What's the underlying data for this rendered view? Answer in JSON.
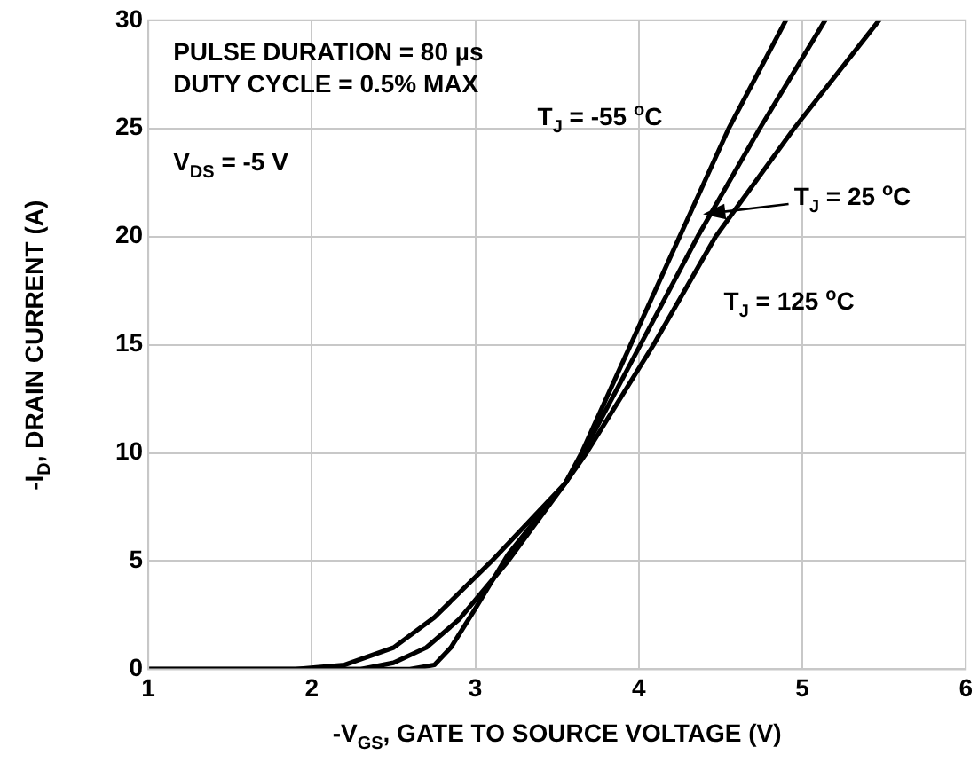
{
  "chart_data": {
    "type": "line",
    "xlabel": "-V$_{GS}$, GATE TO SOURCE VOLTAGE (V)",
    "ylabel": "-I$_{D}$, DRAIN CURRENT (A)",
    "xlim": [
      1,
      6
    ],
    "xticks": [
      1,
      2,
      3,
      4,
      5,
      6
    ],
    "ylim": [
      0,
      30
    ],
    "yticks": [
      0,
      5,
      10,
      15,
      20,
      25,
      30
    ],
    "grid": true,
    "marker": "none",
    "line_style": "solid",
    "series": [
      {
        "name": "T$_{J}$ = -55 $^{o}$C",
        "color": "#000000",
        "x": [
          1,
          2.6,
          2.75,
          2.85,
          3.0,
          3.2,
          3.55,
          3.65,
          3.95,
          4.25,
          4.55,
          4.9
        ],
        "values": [
          0,
          0,
          0.2,
          1,
          2.8,
          5.3,
          8.6,
          10,
          15,
          20,
          25,
          30
        ]
      },
      {
        "name": "T$_{J}$ = 25 $^{o}$C",
        "color": "#000000",
        "x": [
          1,
          2.3,
          2.5,
          2.7,
          2.9,
          3.2,
          3.55,
          3.66,
          4.01,
          4.36,
          4.74,
          5.14
        ],
        "values": [
          0,
          0,
          0.3,
          1,
          2.3,
          5,
          8.6,
          10,
          15,
          20,
          25,
          30
        ]
      },
      {
        "name": "T$_{J}$ = 125 $^{o}$C",
        "color": "#000000",
        "x": [
          1,
          1.9,
          2.2,
          2.5,
          2.75,
          3.1,
          3.55,
          3.68,
          4.09,
          4.47,
          4.95,
          5.47
        ],
        "values": [
          0,
          0,
          0.2,
          1,
          2.4,
          5,
          8.6,
          10,
          15,
          20,
          25,
          30
        ]
      }
    ],
    "annotations": [
      "PULSE DURATION = 80 µs",
      "DUTY CYCLE = 0.5% MAX",
      "V$_{DS}$ = -5 V"
    ]
  }
}
